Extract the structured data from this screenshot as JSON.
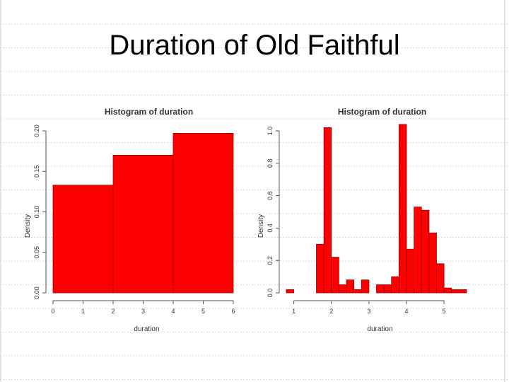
{
  "slide": {
    "title": "Duration of Old Faithful"
  },
  "colors": {
    "bar_fill": "#ff0000",
    "bar_stroke": "#9a0000",
    "axis": "#555555",
    "bg_line": "#d8d8ee"
  },
  "chart_data": [
    {
      "type": "bar",
      "title": "Histogram of duration",
      "xlabel": "duration",
      "ylabel": "Density",
      "xlim": [
        0,
        6
      ],
      "ylim": [
        0,
        0.2
      ],
      "xticks": [
        "0",
        "1",
        "2",
        "3",
        "4",
        "5",
        "6"
      ],
      "yticks": [
        "0.00",
        "0.05",
        "0.10",
        "0.15",
        "0.20"
      ],
      "bins": [
        {
          "x0": 0,
          "x1": 2,
          "density": 0.133
        },
        {
          "x0": 2,
          "x1": 4,
          "density": 0.17
        },
        {
          "x0": 4,
          "x1": 6,
          "density": 0.197
        }
      ]
    },
    {
      "type": "bar",
      "title": "Histogram of duration",
      "xlabel": "duration",
      "ylabel": "Density",
      "xlim": [
        0.8,
        5.6
      ],
      "ylim": [
        0,
        1.0
      ],
      "xticks": [
        "1",
        "2",
        "3",
        "4",
        "5"
      ],
      "yticks": [
        "0.0",
        "0.2",
        "0.4",
        "0.6",
        "0.8",
        "1.0"
      ],
      "bins": [
        {
          "x0": 0.8,
          "x1": 1.0,
          "density": 0.02
        },
        {
          "x0": 1.0,
          "x1": 1.6,
          "density": 0.0
        },
        {
          "x0": 1.6,
          "x1": 1.8,
          "density": 0.3
        },
        {
          "x0": 1.8,
          "x1": 2.0,
          "density": 1.02
        },
        {
          "x0": 2.0,
          "x1": 2.2,
          "density": 0.22
        },
        {
          "x0": 2.2,
          "x1": 2.4,
          "density": 0.05
        },
        {
          "x0": 2.4,
          "x1": 2.6,
          "density": 0.08
        },
        {
          "x0": 2.6,
          "x1": 2.8,
          "density": 0.02
        },
        {
          "x0": 2.8,
          "x1": 3.0,
          "density": 0.08
        },
        {
          "x0": 3.0,
          "x1": 3.2,
          "density": 0.0
        },
        {
          "x0": 3.2,
          "x1": 3.4,
          "density": 0.05
        },
        {
          "x0": 3.4,
          "x1": 3.6,
          "density": 0.05
        },
        {
          "x0": 3.6,
          "x1": 3.8,
          "density": 0.1
        },
        {
          "x0": 3.8,
          "x1": 4.0,
          "density": 1.04
        },
        {
          "x0": 4.0,
          "x1": 4.2,
          "density": 0.27
        },
        {
          "x0": 4.2,
          "x1": 4.4,
          "density": 0.53
        },
        {
          "x0": 4.4,
          "x1": 4.6,
          "density": 0.51
        },
        {
          "x0": 4.6,
          "x1": 4.8,
          "density": 0.37
        },
        {
          "x0": 4.8,
          "x1": 5.0,
          "density": 0.18
        },
        {
          "x0": 5.0,
          "x1": 5.2,
          "density": 0.03
        },
        {
          "x0": 5.2,
          "x1": 5.6,
          "density": 0.02
        }
      ]
    }
  ]
}
